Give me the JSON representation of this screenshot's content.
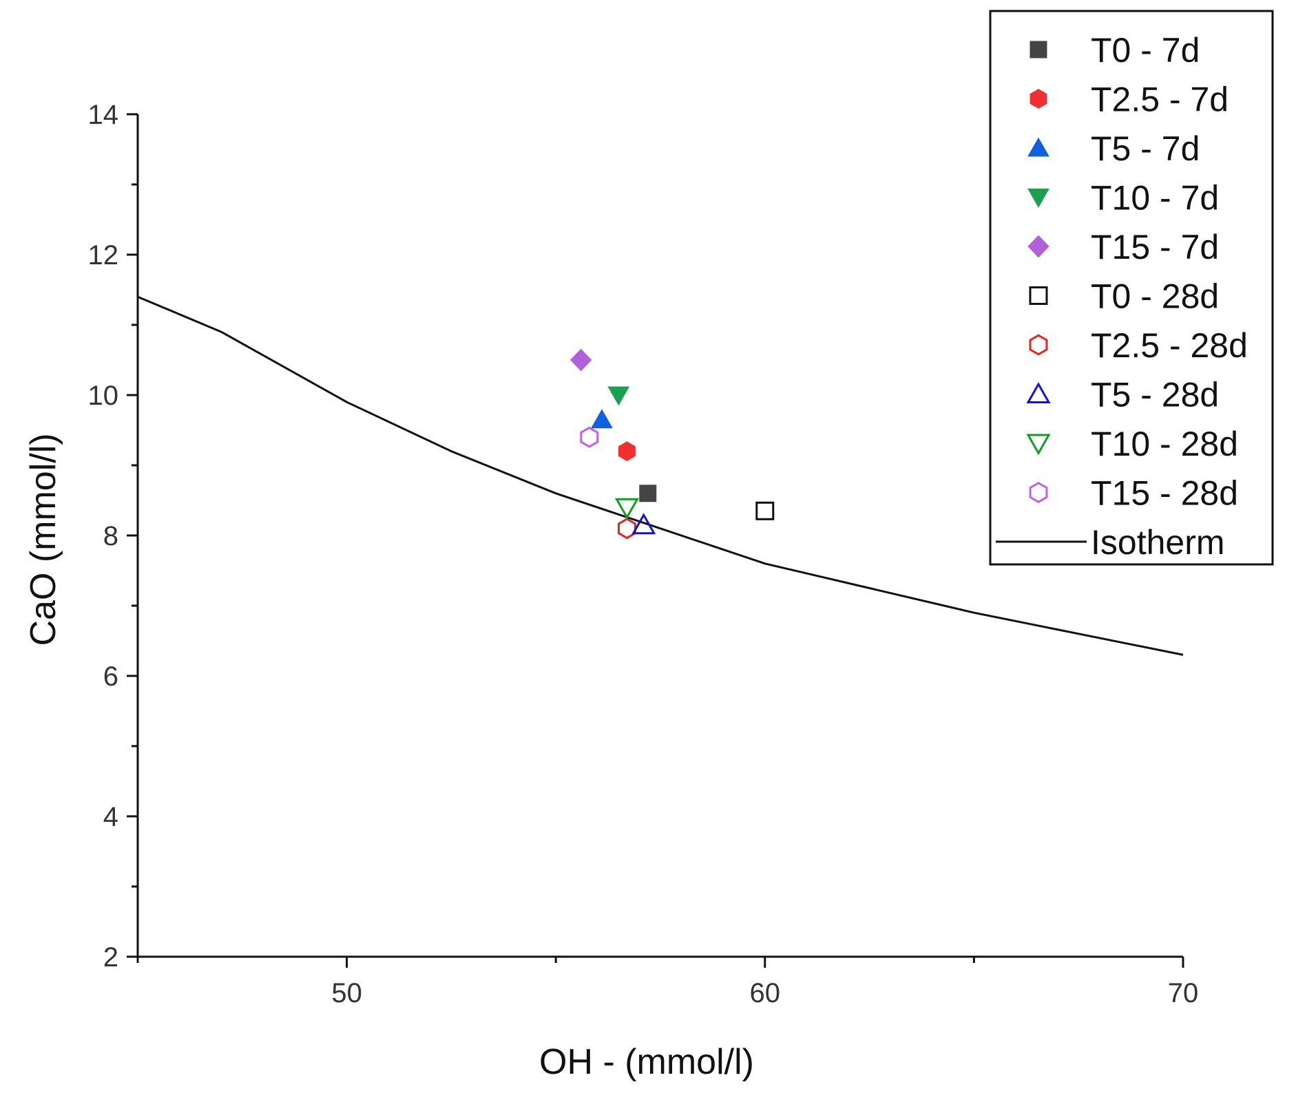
{
  "chart_data": {
    "type": "scatter",
    "title": "",
    "xlabel": "OH - (mmol/l)",
    "ylabel": "CaO (mmol/l)",
    "xlim": [
      45,
      70
    ],
    "ylim": [
      2,
      14
    ],
    "xticks": [
      50,
      60,
      70
    ],
    "yticks": [
      2,
      4,
      6,
      8,
      10,
      12,
      14
    ],
    "legend_position": "top-right",
    "grid": false,
    "series": [
      {
        "name": "T0 - 7d",
        "marker": "square",
        "filled": true,
        "color": "#444444",
        "points": [
          {
            "x": 57.2,
            "y": 8.6
          }
        ]
      },
      {
        "name": "T2.5 - 7d",
        "marker": "hexagon",
        "filled": true,
        "color": "#f03030",
        "points": [
          {
            "x": 56.7,
            "y": 9.2
          }
        ]
      },
      {
        "name": "T5 - 7d",
        "marker": "triangle-up",
        "filled": true,
        "color": "#1060e0",
        "points": [
          {
            "x": 56.1,
            "y": 9.65
          }
        ]
      },
      {
        "name": "T10 - 7d",
        "marker": "triangle-down",
        "filled": true,
        "color": "#1aa050",
        "points": [
          {
            "x": 56.5,
            "y": 10.0
          }
        ]
      },
      {
        "name": "T15 - 7d",
        "marker": "diamond",
        "filled": true,
        "color": "#b060d8",
        "points": [
          {
            "x": 55.6,
            "y": 10.5
          }
        ]
      },
      {
        "name": "T0 - 28d",
        "marker": "square",
        "filled": false,
        "color": "#111111",
        "points": [
          {
            "x": 60.0,
            "y": 8.35
          }
        ]
      },
      {
        "name": "T2.5 - 28d",
        "marker": "hexagon",
        "filled": false,
        "color": "#f02020",
        "points": [
          {
            "x": 56.7,
            "y": 8.1
          }
        ]
      },
      {
        "name": "T5 - 28d",
        "marker": "triangle-up",
        "filled": false,
        "color": "#1010e0",
        "points": [
          {
            "x": 57.1,
            "y": 8.15
          }
        ]
      },
      {
        "name": "T10 - 28d",
        "marker": "triangle-down",
        "filled": false,
        "color": "#10a020",
        "points": [
          {
            "x": 56.7,
            "y": 8.4
          }
        ]
      },
      {
        "name": "T15 - 28d",
        "marker": "hexagon",
        "filled": false,
        "color": "#c060f0",
        "points": [
          {
            "x": 55.8,
            "y": 9.4
          }
        ]
      }
    ],
    "line_series": [
      {
        "name": "Isotherm",
        "color": "#111111",
        "points": [
          {
            "x": 45,
            "y": 11.4
          },
          {
            "x": 47,
            "y": 10.9
          },
          {
            "x": 50,
            "y": 9.9
          },
          {
            "x": 52.5,
            "y": 9.2
          },
          {
            "x": 55,
            "y": 8.6
          },
          {
            "x": 57.5,
            "y": 8.1
          },
          {
            "x": 60,
            "y": 7.6
          },
          {
            "x": 62.5,
            "y": 7.25
          },
          {
            "x": 65,
            "y": 6.9
          },
          {
            "x": 67.5,
            "y": 6.6
          },
          {
            "x": 70,
            "y": 6.3
          }
        ]
      }
    ]
  }
}
